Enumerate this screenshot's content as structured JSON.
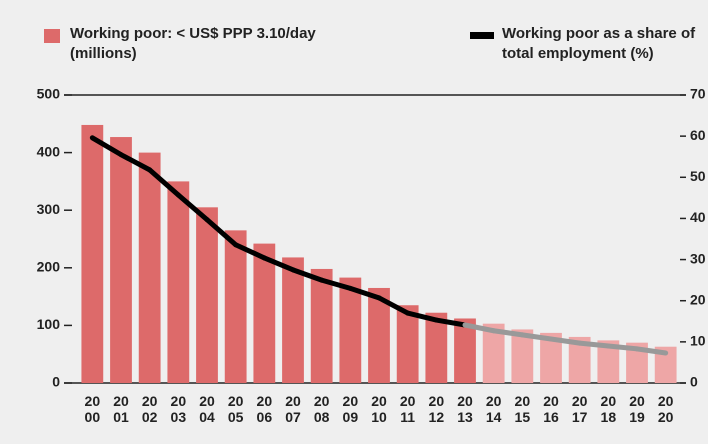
{
  "chart_data": {
    "type": "bar_line",
    "categories": [
      "2000",
      "2001",
      "2002",
      "2003",
      "2004",
      "2005",
      "2006",
      "2007",
      "2008",
      "2009",
      "2010",
      "2011",
      "2012",
      "2013",
      "2014",
      "2015",
      "2016",
      "2017",
      "2018",
      "2019",
      "2020"
    ],
    "series": [
      {
        "name": "Working poor: < US$ PPP 3.10/day (millions)",
        "type": "bar",
        "color": "#dd6a6a",
        "colors": [
          "#dd6a6a",
          "#dd6a6a",
          "#dd6a6a",
          "#dd6a6a",
          "#dd6a6a",
          "#dd6a6a",
          "#dd6a6a",
          "#dd6a6a",
          "#dd6a6a",
          "#dd6a6a",
          "#dd6a6a",
          "#dd6a6a",
          "#dd6a6a",
          "#dd6a6a",
          "#eea6a6",
          "#eea6a6",
          "#eea6a6",
          "#eea6a6",
          "#eea6a6",
          "#eea6a6",
          "#eea6a6"
        ],
        "values": [
          448,
          427,
          400,
          350,
          305,
          265,
          242,
          218,
          198,
          183,
          165,
          135,
          122,
          112,
          103,
          93,
          87,
          80,
          74,
          70,
          63
        ]
      },
      {
        "name": "Working poor as a share of total employment (%)",
        "type": "line",
        "axis": "y2",
        "color": "#000000",
        "colors": [
          "#000000",
          "#000000",
          "#000000",
          "#000000",
          "#000000",
          "#000000",
          "#000000",
          "#000000",
          "#000000",
          "#000000",
          "#000000",
          "#000000",
          "#000000",
          "#000000",
          "#999999",
          "#999999",
          "#999999",
          "#999999",
          "#999999",
          "#999999",
          "#999999"
        ],
        "values": [
          59.6,
          55.5,
          51.8,
          45.7,
          39.7,
          33.6,
          30.4,
          27.5,
          25,
          23,
          20.7,
          17,
          15.3,
          14.1,
          12.7,
          11.7,
          10.7,
          9.7,
          9,
          8.3,
          7.3
        ]
      }
    ],
    "ylim": [
      0,
      500
    ],
    "yticks": [
      0,
      100,
      200,
      300,
      400,
      500
    ],
    "y2lim": [
      0,
      70
    ],
    "y2ticks": [
      0,
      10,
      20,
      30,
      40,
      50,
      60,
      70
    ]
  }
}
